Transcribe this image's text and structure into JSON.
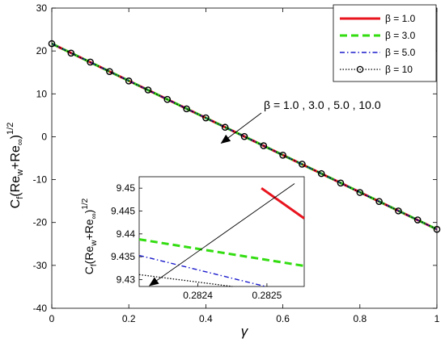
{
  "chart_data": [
    {
      "type": "line",
      "xlabel": "γ",
      "ylabel": "Cf(Rew+Re∞)1/2",
      "xlim": [
        0,
        1
      ],
      "ylim": [
        -40,
        30
      ],
      "x_ticks": [
        "0",
        "0.2",
        "0.4",
        "0.6",
        "0.8",
        "1"
      ],
      "x_tick_values": [
        0,
        0.2,
        0.4,
        0.6,
        0.8,
        1
      ],
      "y_ticks": [
        "-40",
        "-30",
        "-20",
        "-10",
        "0",
        "10",
        "20",
        "30"
      ],
      "y_tick_values": [
        -40,
        -30,
        -20,
        -10,
        0,
        10,
        20,
        30
      ],
      "legend_placement": "top-right",
      "series": [
        {
          "name": "β = 1.0",
          "x": [
            0,
            1
          ],
          "y": [
            21.7,
            -21.6
          ],
          "color": "#e8141e",
          "style": "solid",
          "marker": "none"
        },
        {
          "name": "β = 3.0",
          "x": [
            0,
            1
          ],
          "y": [
            21.7,
            -21.6
          ],
          "color": "#33dd11",
          "style": "dashed",
          "marker": "none"
        },
        {
          "name": "β = 5.0",
          "x": [
            0,
            1
          ],
          "y": [
            21.7,
            -21.6
          ],
          "color": "#1a1acc",
          "style": "dashdot",
          "marker": "none"
        },
        {
          "name": "β = 10",
          "x": [
            0,
            0.05,
            0.1,
            0.15,
            0.2,
            0.25,
            0.3,
            0.35,
            0.4,
            0.45,
            0.5,
            0.55,
            0.6,
            0.65,
            0.7,
            0.75,
            0.8,
            0.85,
            0.9,
            0.95,
            1.0
          ],
          "y": [
            21.7,
            19.5,
            17.4,
            15.2,
            13.0,
            10.9,
            8.7,
            6.5,
            4.4,
            2.2,
            0.05,
            -2.1,
            -4.3,
            -6.4,
            -8.6,
            -10.8,
            -13.0,
            -15.1,
            -17.3,
            -19.4,
            -21.6
          ],
          "color": "#000000",
          "style": "dotted",
          "marker": "circle"
        }
      ],
      "annotation": {
        "text": "β = 1.0 , 3.0 , 5.0 , 10.0",
        "arrow_to": [
          0.44,
          -1.5
        ]
      }
    },
    {
      "type": "line",
      "inset": true,
      "ylabel": "Cf(Rew+Re∞)1/2",
      "xlim": [
        0.282315,
        0.282554
      ],
      "ylim": [
        9.4285,
        9.4525
      ],
      "x_ticks": [
        "0.2824",
        "0.2825"
      ],
      "x_tick_values": [
        0.2824,
        0.2825
      ],
      "y_ticks": [
        "9.43",
        "9.435",
        "9.44",
        "9.445",
        "9.45"
      ],
      "y_tick_values": [
        9.43,
        9.435,
        9.44,
        9.445,
        9.45
      ],
      "series": [
        {
          "name": "β = 1.0",
          "x": [
            0.282492,
            0.282554
          ],
          "y": [
            9.45,
            9.4434
          ],
          "color": "#e8141e",
          "style": "solid"
        },
        {
          "name": "β = 3.0",
          "x": [
            0.282315,
            0.282554
          ],
          "y": [
            9.4388,
            9.433
          ],
          "color": "#33dd11",
          "style": "dashed"
        },
        {
          "name": "β = 5.0",
          "x": [
            0.282315,
            0.282498
          ],
          "y": [
            9.4353,
            9.4285
          ],
          "color": "#1a1acc",
          "style": "dashdot"
        },
        {
          "name": "β = 10",
          "x": [
            0.282315,
            0.28245
          ],
          "y": [
            9.4311,
            9.4285
          ],
          "color": "#000000",
          "style": "dotted"
        }
      ],
      "arrow_from": [
        0.28254,
        9.451
      ],
      "arrow_to": [
        0.28233,
        9.4287
      ]
    }
  ]
}
